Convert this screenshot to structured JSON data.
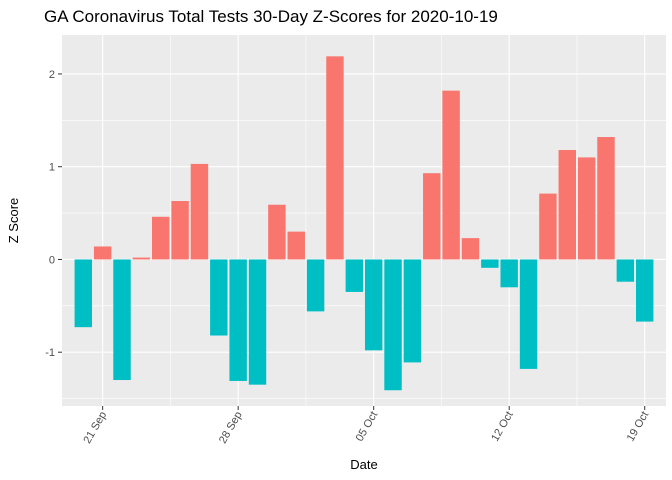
{
  "chart_data": {
    "type": "bar",
    "title": "GA Coronavirus Total Tests 30-Day Z-Scores for 2020-10-19",
    "xlabel": "Date",
    "ylabel": "Z Score",
    "dates": [
      "2020-09-20",
      "2020-09-21",
      "2020-09-22",
      "2020-09-23",
      "2020-09-24",
      "2020-09-25",
      "2020-09-26",
      "2020-09-27",
      "2020-09-28",
      "2020-09-29",
      "2020-09-30",
      "2020-10-01",
      "2020-10-02",
      "2020-10-03",
      "2020-10-04",
      "2020-10-05",
      "2020-10-06",
      "2020-10-07",
      "2020-10-08",
      "2020-10-09",
      "2020-10-10",
      "2020-10-11",
      "2020-10-12",
      "2020-10-13",
      "2020-10-14",
      "2020-10-15",
      "2020-10-16",
      "2020-10-17",
      "2020-10-18",
      "2020-10-19"
    ],
    "values": [
      -0.73,
      0.14,
      -1.3,
      0.02,
      0.46,
      0.63,
      1.03,
      -0.82,
      -1.31,
      -1.35,
      0.59,
      0.3,
      -0.56,
      2.19,
      -0.35,
      -0.98,
      -1.41,
      -1.11,
      0.93,
      1.82,
      0.23,
      -0.09,
      -0.3,
      -1.18,
      0.71,
      1.18,
      1.1,
      1.32,
      -0.24,
      -0.67
    ],
    "x_ticks": [
      {
        "label": "21 Sep",
        "date": "2020-09-21"
      },
      {
        "label": "28 Sep",
        "date": "2020-09-28"
      },
      {
        "label": "05 Oct",
        "date": "2020-10-05"
      },
      {
        "label": "12 Oct",
        "date": "2020-10-12"
      },
      {
        "label": "19 Oct",
        "date": "2020-10-19"
      }
    ],
    "y_ticks": [
      -1,
      0,
      1,
      2
    ],
    "ylim": [
      -1.58,
      2.42
    ],
    "grid": true,
    "colors": {
      "positive": "#F8766D",
      "negative": "#00BFC4",
      "panel": "#EBEBEB",
      "grid_major": "#FFFFFF"
    }
  }
}
